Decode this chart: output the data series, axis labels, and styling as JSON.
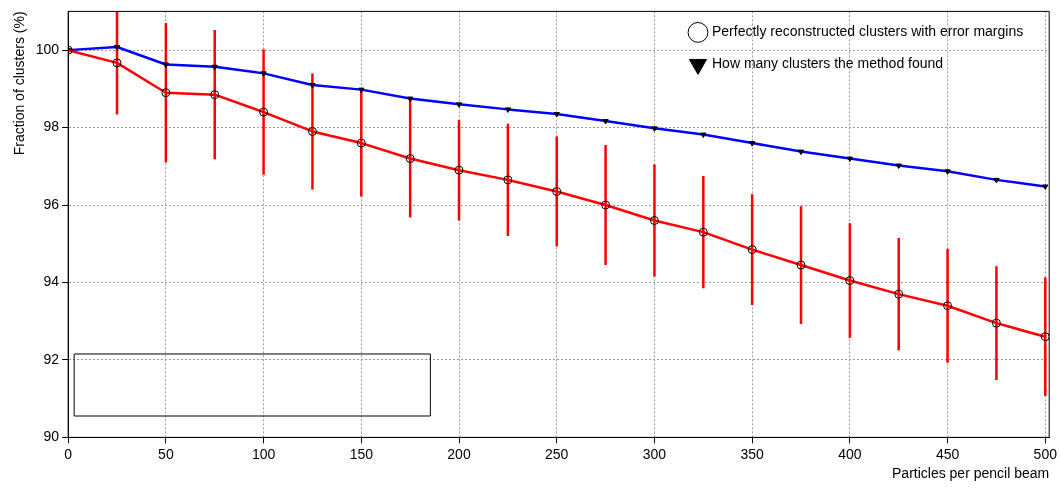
{
  "chart_data": {
    "type": "line",
    "xlabel": "Particles per pencil beam",
    "ylabel": "Fraction of clusters (%)",
    "x": [
      0,
      25,
      50,
      75,
      100,
      125,
      150,
      175,
      200,
      225,
      250,
      275,
      300,
      325,
      350,
      375,
      400,
      425,
      450,
      475,
      500
    ],
    "series": [
      {
        "name": "Perfectly reconstructed clusters with error margins",
        "color": "#ff0000",
        "marker": "circle",
        "values": [
          100,
          99.67,
          98.9,
          98.85,
          98.4,
          97.9,
          97.6,
          97.2,
          96.9,
          96.65,
          96.35,
          96.0,
          95.6,
          95.3,
          94.85,
          94.45,
          94.05,
          93.7,
          93.4,
          92.95,
          92.6
        ],
        "errors": [
          null,
          1.33,
          1.8,
          1.67,
          1.62,
          1.5,
          1.38,
          1.52,
          1.3,
          1.45,
          1.42,
          1.55,
          1.45,
          1.45,
          1.43,
          1.52,
          1.48,
          1.45,
          1.47,
          1.47,
          1.53
        ]
      },
      {
        "name": "How many clusters the method found",
        "color": "#0000ff",
        "marker": "triangle",
        "values": [
          100,
          100.08,
          99.63,
          99.57,
          99.4,
          99.1,
          98.98,
          98.75,
          98.6,
          98.47,
          98.35,
          98.17,
          97.98,
          97.82,
          97.6,
          97.38,
          97.2,
          97.02,
          96.87,
          96.65,
          96.48
        ]
      }
    ],
    "xlim": [
      0,
      502
    ],
    "xticks": [
      0,
      50,
      100,
      150,
      200,
      250,
      300,
      350,
      400,
      450,
      500
    ],
    "ylim": [
      90,
      101
    ],
    "yticks": [
      90,
      92,
      94,
      96,
      98,
      100
    ],
    "grid": true,
    "legend": "top right",
    "line_style": "solid"
  }
}
